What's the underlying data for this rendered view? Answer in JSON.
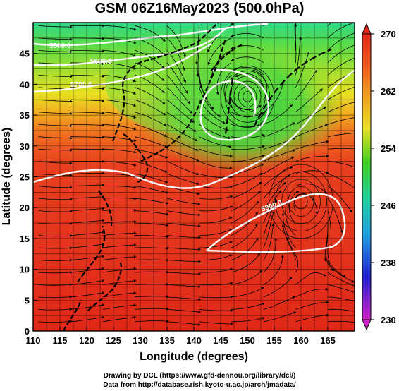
{
  "title": "GSM 06Z16May2023 (500.0hPa)",
  "credits": {
    "line1": "Drawing by DCL (https://www.gfd-dennou.org/library/dcl/)",
    "line2": "Data from http://database.rish.kyoto-u.ac.jp/arch/jmadata/"
  },
  "map": {
    "x_label": "Longitude (degrees)",
    "y_label": "Latitude (degrees)",
    "x_ticks": [
      "110",
      "115",
      "120",
      "125",
      "130",
      "135",
      "140",
      "145",
      "150",
      "155",
      "160",
      "165"
    ],
    "y_ticks": [
      "0",
      "5",
      "10",
      "15",
      "20",
      "25",
      "30",
      "35",
      "40",
      "45"
    ],
    "lon_range": [
      110,
      170
    ],
    "lat_range": [
      0,
      50
    ],
    "contour_labels": [
      "5500.0",
      "5600.0",
      "5700.0",
      "5900.0"
    ],
    "low_center": {
      "lon": 150,
      "lat": 38
    },
    "high_center": {
      "lon": 160,
      "lat": 21
    }
  },
  "colorbar": {
    "ticks": [
      "270",
      "262",
      "254",
      "246",
      "238",
      "230"
    ],
    "range": [
      230,
      270
    ],
    "colors": [
      "#d020c8",
      "#2020d0",
      "#20a0e0",
      "#20d0a0",
      "#20d020",
      "#e0e020",
      "#f0a020",
      "#e03020"
    ]
  },
  "chart_data": {
    "type": "heatmap",
    "title": "GSM 06Z16May2023 (500.0hPa)",
    "xlabel": "Longitude (degrees)",
    "ylabel": "Latitude (degrees)",
    "xlim": [
      110,
      170
    ],
    "ylim": [
      0,
      50
    ],
    "colorbar_range": [
      230,
      270
    ]
  }
}
